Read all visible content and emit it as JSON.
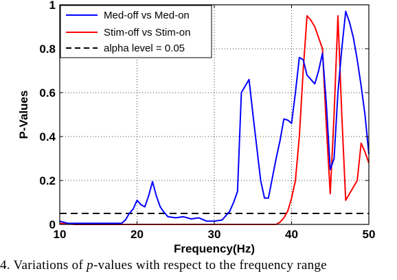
{
  "chart_data": {
    "type": "line",
    "title": "",
    "xlabel": "Frequency(Hz)",
    "ylabel": "P-Values",
    "xlim": [
      10,
      50
    ],
    "ylim": [
      0,
      1
    ],
    "xticks": [
      10,
      20,
      30,
      40,
      50
    ],
    "yticks": [
      0,
      0.2,
      0.4,
      0.6,
      0.8,
      1
    ],
    "xtick_labels": [
      "10",
      "20",
      "30",
      "40",
      "50"
    ],
    "ytick_labels": [
      "0",
      "0.2",
      "0.4",
      "0.6",
      "0.8",
      "1"
    ],
    "grid": true,
    "legend_position": "top-left",
    "series": [
      {
        "name": "Med-off vs Med-on",
        "color": "#0000ff",
        "style": "solid",
        "x": [
          10,
          10.5,
          11,
          12,
          14,
          16,
          17,
          18,
          18.5,
          19,
          19.5,
          20,
          20.5,
          21,
          21.5,
          22,
          22.5,
          23,
          23.5,
          24,
          25,
          26,
          27,
          28,
          29,
          30,
          31,
          32,
          32.5,
          33,
          33.5,
          34,
          34.5,
          35,
          35.5,
          36,
          36.5,
          37,
          38,
          38.5,
          39,
          39.5,
          40,
          40.5,
          41,
          41.5,
          42,
          42.5,
          43,
          43.5,
          44,
          44.5,
          45,
          45.5,
          46,
          46.5,
          47,
          47.5,
          48,
          48.5,
          49,
          49.5,
          50
        ],
        "y": [
          0.015,
          0.01,
          0.005,
          0.005,
          0.005,
          0.005,
          0.005,
          0.005,
          0.02,
          0.05,
          0.07,
          0.11,
          0.09,
          0.08,
          0.13,
          0.195,
          0.13,
          0.08,
          0.055,
          0.035,
          0.03,
          0.035,
          0.025,
          0.03,
          0.015,
          0.015,
          0.02,
          0.06,
          0.1,
          0.15,
          0.6,
          0.63,
          0.66,
          0.5,
          0.35,
          0.2,
          0.12,
          0.12,
          0.3,
          0.38,
          0.48,
          0.475,
          0.46,
          0.6,
          0.76,
          0.75,
          0.68,
          0.66,
          0.64,
          0.7,
          0.78,
          0.55,
          0.25,
          0.3,
          0.6,
          0.8,
          0.97,
          0.92,
          0.85,
          0.75,
          0.63,
          0.5,
          0.32
        ]
      },
      {
        "name": "Stim-off vs Stim-on",
        "color": "#ff0000",
        "style": "solid",
        "x": [
          10,
          12,
          14,
          16,
          18,
          20,
          22,
          24,
          26,
          28,
          30,
          32,
          34,
          36,
          37,
          38,
          38.5,
          39,
          39.5,
          40,
          40.5,
          41,
          41.5,
          42,
          42.5,
          43,
          43.5,
          44,
          44.5,
          45,
          45.5,
          46,
          46.5,
          47,
          47.5,
          48,
          48.5,
          49,
          49.5,
          50
        ],
        "y": [
          0.005,
          0.0,
          0.0,
          0.0,
          0.0,
          0.0,
          0.0,
          0.0,
          0.0,
          0.0,
          0.0,
          0.0,
          0.0,
          0.0,
          0.0,
          0.0,
          0.01,
          0.03,
          0.06,
          0.12,
          0.2,
          0.4,
          0.7,
          0.95,
          0.93,
          0.9,
          0.85,
          0.8,
          0.45,
          0.14,
          0.5,
          0.95,
          0.5,
          0.11,
          0.14,
          0.17,
          0.2,
          0.37,
          0.33,
          0.28
        ]
      },
      {
        "name": "alpha level = 0.05",
        "color": "#000000",
        "style": "dashed",
        "x": [
          10,
          50
        ],
        "y": [
          0.05,
          0.05
        ]
      }
    ]
  },
  "caption": {
    "prefix": "4. Variations of ",
    "italic": "p",
    "suffix": "-values with respect to the frequency range"
  }
}
